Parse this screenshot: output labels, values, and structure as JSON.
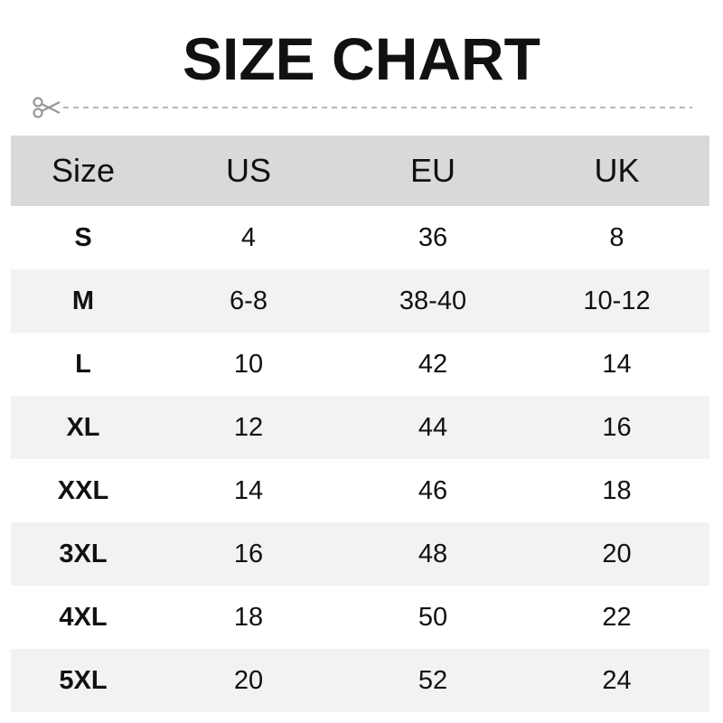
{
  "title": "SIZE CHART",
  "icons": {
    "cut": "scissors-icon"
  },
  "colors": {
    "header_bg": "#d9d9d9",
    "alt_row_bg": "#f2f2f2",
    "cutline": "#a0a0a0"
  },
  "table": {
    "headers": [
      "Size",
      "US",
      "EU",
      "UK"
    ],
    "rows": [
      [
        "S",
        "4",
        "36",
        "8"
      ],
      [
        "M",
        "6-8",
        "38-40",
        "10-12"
      ],
      [
        "L",
        "10",
        "42",
        "14"
      ],
      [
        "XL",
        "12",
        "44",
        "16"
      ],
      [
        "XXL",
        "14",
        "46",
        "18"
      ],
      [
        "3XL",
        "16",
        "48",
        "20"
      ],
      [
        "4XL",
        "18",
        "50",
        "22"
      ],
      [
        "5XL",
        "20",
        "52",
        "24"
      ]
    ]
  }
}
